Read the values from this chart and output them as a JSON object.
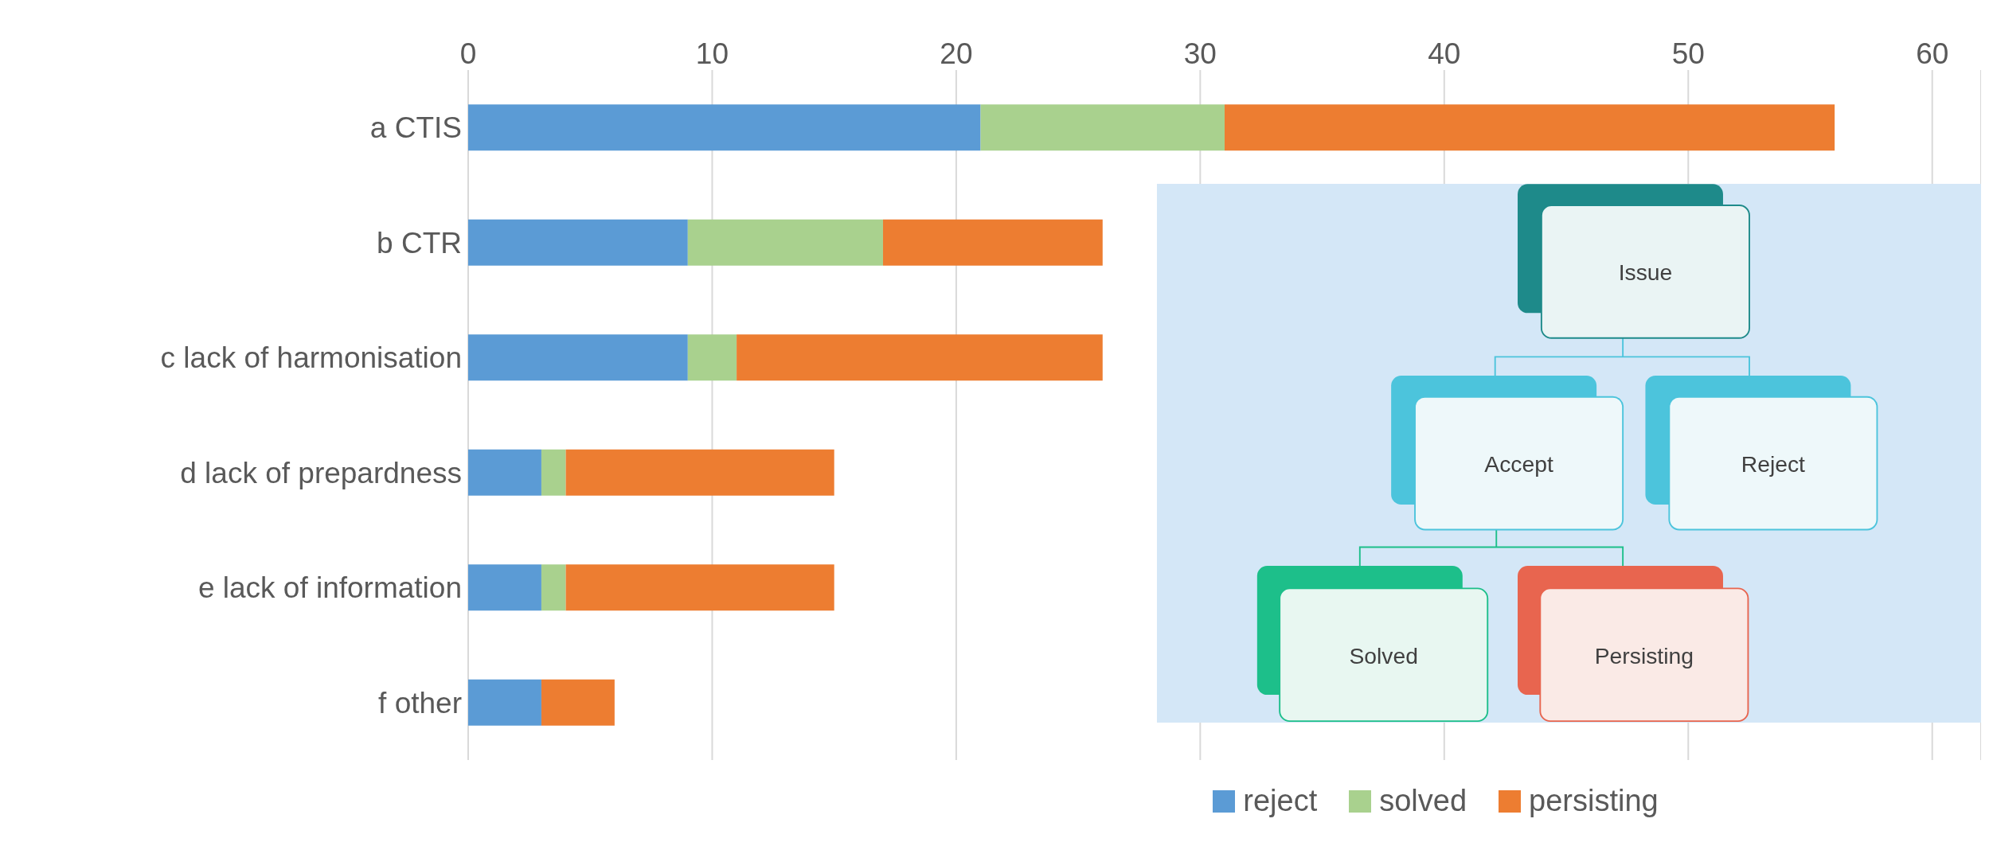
{
  "chart_data": {
    "type": "bar",
    "orientation": "horizontal",
    "stacked": true,
    "categories": [
      "a CTIS",
      "b CTR",
      "c lack of harmonisation",
      "d lack of prepardness",
      "e lack of information",
      "f other"
    ],
    "series": [
      {
        "name": "reject",
        "color": "#5b9bd5",
        "values": [
          21,
          9,
          9,
          3,
          3,
          3
        ]
      },
      {
        "name": "solved",
        "color": "#a9d18e",
        "values": [
          10,
          8,
          2,
          1,
          1,
          0
        ]
      },
      {
        "name": "persisting",
        "color": "#ed7d31",
        "values": [
          25,
          9,
          15,
          11,
          11,
          3
        ]
      }
    ],
    "xlim": [
      0,
      62
    ],
    "xticks": [
      0,
      10,
      20,
      30,
      40,
      50,
      60
    ],
    "grid": "x",
    "legend": "bottom",
    "annotations": [
      "Issue",
      "Accept",
      "Reject",
      "Solved",
      "Persisting"
    ]
  }
}
